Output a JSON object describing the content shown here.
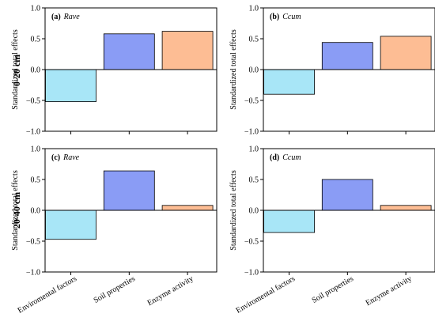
{
  "row_labels": [
    "0-20 cm",
    "20-40 cm"
  ],
  "chart_data": [
    {
      "type": "bar",
      "panel_label": "(a)",
      "panel_name": "Rave",
      "ylabel": "Standardized total effects",
      "ylim": [
        -1.0,
        1.0
      ],
      "yticks": [
        "1.0",
        "0.5",
        "0.0",
        "−0.5",
        "−1.0"
      ],
      "categories": [
        "Enviromental factors",
        "Soil properties",
        "Enzyme activity"
      ],
      "values": [
        -0.52,
        0.58,
        0.62
      ],
      "colors": [
        "#a8e6f7",
        "#8a9cf5",
        "#fdbd94"
      ],
      "grid": false
    },
    {
      "type": "bar",
      "panel_label": "(b)",
      "panel_name": "Ccum",
      "ylabel": "Standardized total effects",
      "ylim": [
        -1.0,
        1.0
      ],
      "yticks": [
        "1.0",
        "0.5",
        "0.0",
        "−0.5",
        "−1.0"
      ],
      "categories": [
        "Enviromental factors",
        "Soil properties",
        "Enzyme activity"
      ],
      "values": [
        -0.4,
        0.44,
        0.54
      ],
      "colors": [
        "#a8e6f7",
        "#8a9cf5",
        "#fdbd94"
      ],
      "grid": false
    },
    {
      "type": "bar",
      "panel_label": "(c)",
      "panel_name": "Rave",
      "ylabel": "Standardized total effects",
      "ylim": [
        -1.0,
        1.0
      ],
      "yticks": [
        "1.0",
        "0.5",
        "0.0",
        "−0.5",
        "−1.0"
      ],
      "categories": [
        "Enviromental factors",
        "Soil properties",
        "Enzyme activity"
      ],
      "values": [
        -0.47,
        0.64,
        0.08
      ],
      "colors": [
        "#a8e6f7",
        "#8a9cf5",
        "#fdbd94"
      ],
      "grid": false
    },
    {
      "type": "bar",
      "panel_label": "(d)",
      "panel_name": "Ccum",
      "ylabel": "Standardized total effects",
      "ylim": [
        -1.0,
        1.0
      ],
      "yticks": [
        "1.0",
        "0.5",
        "0.0",
        "−0.5",
        "−1.0"
      ],
      "categories": [
        "Enviromental factors",
        "Soil properties",
        "Enzyme activity"
      ],
      "values": [
        -0.36,
        0.5,
        0.08
      ],
      "colors": [
        "#a8e6f7",
        "#8a9cf5",
        "#fdbd94"
      ],
      "grid": false
    }
  ]
}
